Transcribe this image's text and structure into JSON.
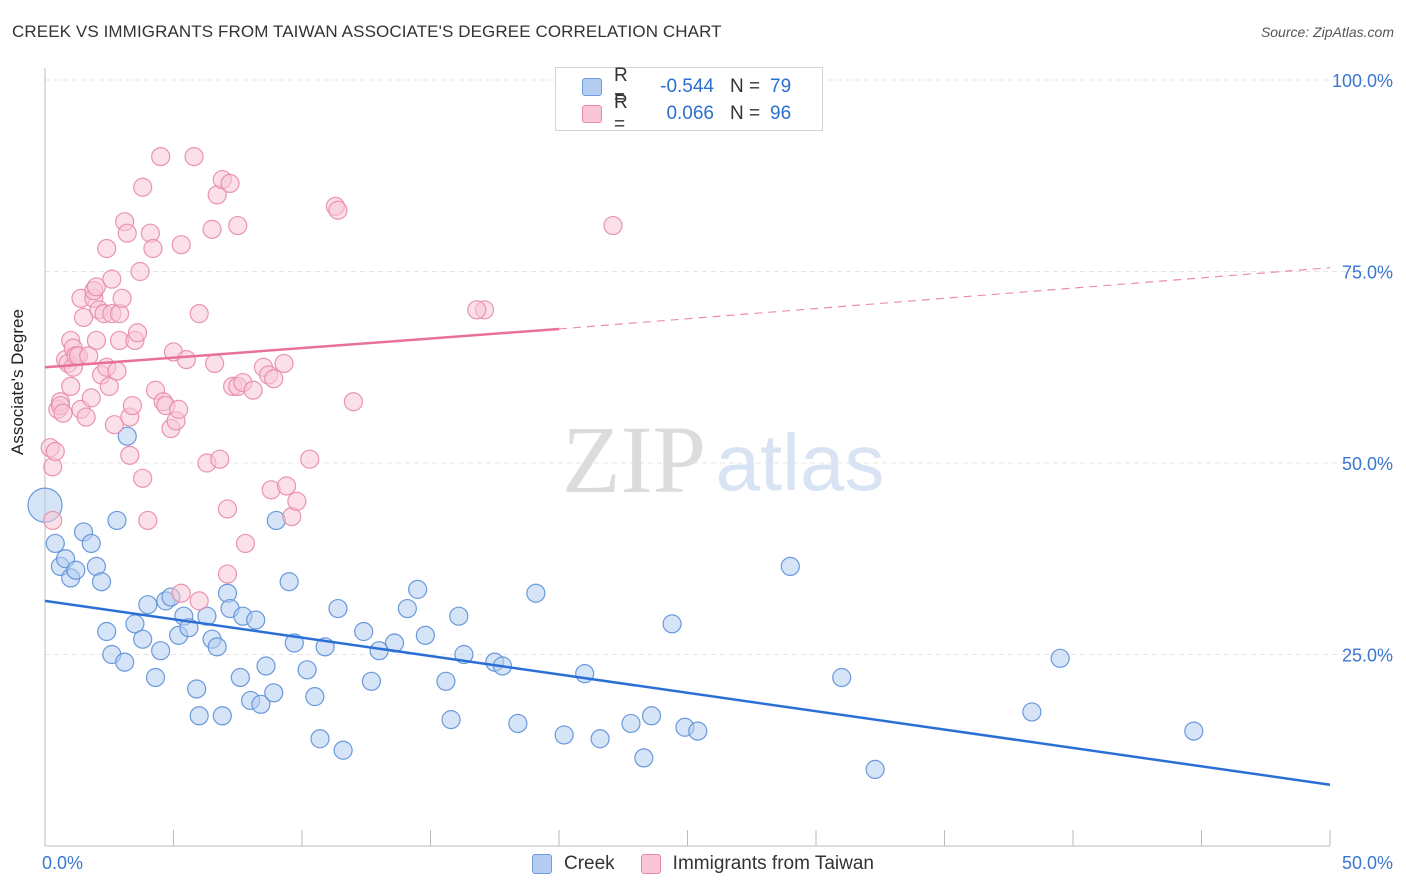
{
  "header": {
    "title": "CREEK VS IMMIGRANTS FROM TAIWAN ASSOCIATE'S DEGREE CORRELATION CHART",
    "source": "Source: ZipAtlas.com"
  },
  "watermark": {
    "zip": "ZIP",
    "atlas": "atlas"
  },
  "legend": {
    "rows": [
      {
        "r_label": "R =",
        "r_value": "-0.544",
        "n_label": "N =",
        "n_value": "79",
        "color": "#a9c7ef"
      },
      {
        "r_label": "R =",
        "r_value": "0.066",
        "n_label": "N =",
        "n_value": "96",
        "color": "#f6b8cb"
      }
    ]
  },
  "bottom_legend": {
    "creek": "Creek",
    "taiwan": "Immigrants from Taiwan"
  },
  "chart_data": {
    "type": "scatter",
    "xlabel": "",
    "ylabel": "Associate's Degree",
    "xlim": [
      0,
      50
    ],
    "ylim": [
      0,
      100
    ],
    "x_tick_labels": [
      "0.0%",
      "50.0%"
    ],
    "y_tick_labels": [
      "100.0%",
      "75.0%",
      "50.0%",
      "25.0%"
    ],
    "y_ticks": [
      100,
      75,
      50,
      25
    ],
    "grid": true,
    "legend_position": "top-center",
    "colors": {
      "creek": "#5b8fd8",
      "creek_fill": "#b4cdf1",
      "creek_line": "#2b6fd6",
      "taiwan": "#e88aa8",
      "taiwan_fill": "#f8c6d5",
      "taiwan_line": "#e8709a"
    },
    "series": [
      {
        "name": "Creek",
        "points": [
          [
            0.0,
            44.5
          ],
          [
            0.4,
            39.5
          ],
          [
            0.6,
            36.5
          ],
          [
            0.8,
            37.5
          ],
          [
            1.0,
            35.0
          ],
          [
            1.2,
            36.0
          ],
          [
            1.5,
            41.0
          ],
          [
            1.8,
            39.5
          ],
          [
            2.0,
            36.5
          ],
          [
            2.2,
            34.5
          ],
          [
            2.4,
            28.0
          ],
          [
            2.6,
            25.0
          ],
          [
            2.8,
            42.5
          ],
          [
            3.1,
            24.0
          ],
          [
            3.2,
            53.5
          ],
          [
            3.5,
            29.0
          ],
          [
            3.8,
            27.0
          ],
          [
            4.0,
            31.5
          ],
          [
            4.3,
            22.0
          ],
          [
            4.5,
            25.5
          ],
          [
            4.7,
            32.0
          ],
          [
            4.9,
            32.5
          ],
          [
            5.2,
            27.5
          ],
          [
            5.4,
            30.0
          ],
          [
            5.6,
            28.5
          ],
          [
            5.9,
            20.5
          ],
          [
            6.0,
            17.0
          ],
          [
            6.3,
            30.0
          ],
          [
            6.5,
            27.0
          ],
          [
            6.7,
            26.0
          ],
          [
            6.9,
            17.0
          ],
          [
            7.1,
            33.0
          ],
          [
            7.2,
            31.0
          ],
          [
            7.6,
            22.0
          ],
          [
            7.7,
            30.0
          ],
          [
            8.0,
            19.0
          ],
          [
            8.2,
            29.5
          ],
          [
            8.4,
            18.5
          ],
          [
            8.6,
            23.5
          ],
          [
            8.9,
            20.0
          ],
          [
            9.0,
            42.5
          ],
          [
            9.5,
            34.5
          ],
          [
            9.7,
            26.5
          ],
          [
            10.2,
            23.0
          ],
          [
            10.5,
            19.5
          ],
          [
            10.7,
            14.0
          ],
          [
            10.9,
            26.0
          ],
          [
            11.4,
            31.0
          ],
          [
            11.6,
            12.5
          ],
          [
            12.4,
            28.0
          ],
          [
            12.7,
            21.5
          ],
          [
            13.0,
            25.5
          ],
          [
            13.6,
            26.5
          ],
          [
            14.1,
            31.0
          ],
          [
            14.5,
            33.5
          ],
          [
            14.8,
            27.5
          ],
          [
            15.6,
            21.5
          ],
          [
            15.8,
            16.5
          ],
          [
            16.1,
            30.0
          ],
          [
            16.3,
            25.0
          ],
          [
            17.5,
            24.0
          ],
          [
            17.8,
            23.5
          ],
          [
            18.4,
            16.0
          ],
          [
            19.1,
            33.0
          ],
          [
            20.2,
            14.5
          ],
          [
            21.0,
            22.5
          ],
          [
            21.6,
            14.0
          ],
          [
            22.8,
            16.0
          ],
          [
            23.3,
            11.5
          ],
          [
            23.6,
            17.0
          ],
          [
            24.4,
            29.0
          ],
          [
            24.9,
            15.5
          ],
          [
            25.4,
            15.0
          ],
          [
            29.0,
            36.5
          ],
          [
            31.0,
            22.0
          ],
          [
            32.3,
            10.0
          ],
          [
            38.4,
            17.5
          ],
          [
            39.5,
            24.5
          ],
          [
            44.7,
            15.0
          ]
        ],
        "trend": {
          "x": [
            0,
            50
          ],
          "y": [
            32.0,
            8.0
          ]
        }
      },
      {
        "name": "Immigrants from Taiwan",
        "points": [
          [
            0.2,
            52.0
          ],
          [
            0.3,
            49.5
          ],
          [
            0.3,
            42.5
          ],
          [
            0.4,
            51.5
          ],
          [
            0.5,
            57.0
          ],
          [
            0.6,
            58.0
          ],
          [
            0.6,
            57.5
          ],
          [
            0.7,
            56.5
          ],
          [
            0.8,
            63.5
          ],
          [
            0.9,
            63.0
          ],
          [
            1.0,
            60.0
          ],
          [
            1.0,
            66.0
          ],
          [
            1.1,
            65.0
          ],
          [
            1.1,
            62.5
          ],
          [
            1.2,
            64.0
          ],
          [
            1.3,
            64.0
          ],
          [
            1.4,
            57.0
          ],
          [
            1.4,
            71.5
          ],
          [
            1.5,
            69.0
          ],
          [
            1.6,
            56.0
          ],
          [
            1.7,
            64.0
          ],
          [
            1.8,
            58.5
          ],
          [
            1.9,
            71.5
          ],
          [
            1.9,
            72.5
          ],
          [
            2.0,
            73.0
          ],
          [
            2.0,
            66.0
          ],
          [
            2.1,
            70.0
          ],
          [
            2.2,
            61.5
          ],
          [
            2.3,
            69.5
          ],
          [
            2.4,
            78.0
          ],
          [
            2.4,
            62.5
          ],
          [
            2.5,
            60.0
          ],
          [
            2.6,
            69.5
          ],
          [
            2.6,
            74.0
          ],
          [
            2.7,
            55.0
          ],
          [
            2.8,
            62.0
          ],
          [
            2.9,
            69.5
          ],
          [
            2.9,
            66.0
          ],
          [
            3.0,
            71.5
          ],
          [
            3.1,
            81.5
          ],
          [
            3.2,
            80.0
          ],
          [
            3.3,
            56.0
          ],
          [
            3.3,
            51.0
          ],
          [
            3.4,
            57.5
          ],
          [
            3.5,
            66.0
          ],
          [
            3.6,
            67.0
          ],
          [
            3.7,
            75.0
          ],
          [
            3.8,
            86.0
          ],
          [
            3.8,
            48.0
          ],
          [
            4.0,
            42.5
          ],
          [
            4.1,
            80.0
          ],
          [
            4.2,
            78.0
          ],
          [
            4.3,
            59.5
          ],
          [
            4.5,
            90.0
          ],
          [
            4.6,
            58.0
          ],
          [
            4.7,
            57.5
          ],
          [
            4.9,
            54.5
          ],
          [
            5.0,
            64.5
          ],
          [
            5.1,
            55.5
          ],
          [
            5.2,
            57.0
          ],
          [
            5.3,
            78.5
          ],
          [
            5.3,
            33.0
          ],
          [
            5.5,
            63.5
          ],
          [
            5.8,
            90.0
          ],
          [
            6.0,
            69.5
          ],
          [
            6.0,
            32.0
          ],
          [
            6.3,
            50.0
          ],
          [
            6.5,
            80.5
          ],
          [
            6.6,
            63.0
          ],
          [
            6.7,
            85.0
          ],
          [
            6.8,
            50.5
          ],
          [
            6.9,
            87.0
          ],
          [
            7.1,
            35.5
          ],
          [
            7.1,
            44.0
          ],
          [
            7.2,
            86.5
          ],
          [
            7.3,
            60.0
          ],
          [
            7.5,
            81.0
          ],
          [
            7.5,
            60.0
          ],
          [
            7.7,
            60.5
          ],
          [
            7.8,
            39.5
          ],
          [
            8.1,
            59.5
          ],
          [
            8.5,
            62.5
          ],
          [
            8.7,
            61.5
          ],
          [
            8.8,
            46.5
          ],
          [
            8.9,
            61.0
          ],
          [
            9.3,
            63.0
          ],
          [
            9.4,
            47.0
          ],
          [
            9.6,
            43.0
          ],
          [
            9.8,
            45.0
          ],
          [
            10.3,
            50.5
          ],
          [
            11.3,
            83.5
          ],
          [
            11.4,
            83.0
          ],
          [
            12.0,
            58.0
          ],
          [
            17.1,
            70.0
          ],
          [
            16.8,
            70.0
          ],
          [
            22.1,
            81.0
          ]
        ],
        "trend": {
          "x": [
            0,
            20
          ],
          "y": [
            62.5,
            67.5
          ]
        },
        "trend_dashed": {
          "x": [
            20,
            50
          ],
          "y": [
            67.5,
            75.5
          ]
        }
      }
    ]
  }
}
